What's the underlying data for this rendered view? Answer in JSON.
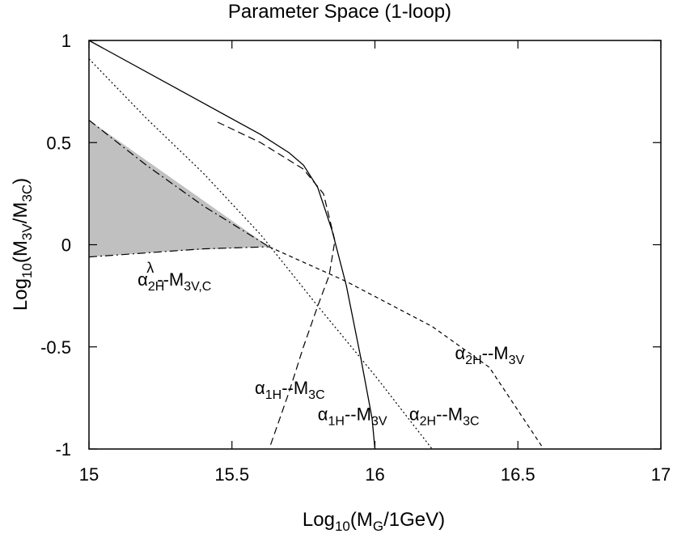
{
  "chart_data": {
    "type": "line",
    "title": "Parameter Space (1-loop)",
    "xlabel": {
      "base": "Log",
      "base_sub": "10",
      "open": "(M",
      "sub": "G",
      "close": "/1GeV)"
    },
    "ylabel": {
      "base": "Log",
      "base_sub": "10",
      "open": "(M",
      "sub1": "3V",
      "mid": "/M",
      "sub2": "3C",
      "close": ")"
    },
    "xlim": [
      15,
      17
    ],
    "ylim": [
      -1,
      1
    ],
    "xticks": [
      {
        "v": 15,
        "label": "15"
      },
      {
        "v": 15.5,
        "label": "15.5"
      },
      {
        "v": 16,
        "label": "16"
      },
      {
        "v": 16.5,
        "label": "16.5"
      },
      {
        "v": 17,
        "label": "17"
      }
    ],
    "yticks": [
      {
        "v": -1,
        "label": "-1"
      },
      {
        "v": -0.5,
        "label": "-0.5"
      },
      {
        "v": 0,
        "label": "0"
      },
      {
        "v": 0.5,
        "label": "0.5"
      },
      {
        "v": 1,
        "label": "1"
      }
    ],
    "grid": false,
    "shaded_region": {
      "color": "#c0c0c0",
      "points": [
        [
          15.0,
          0.61
        ],
        [
          15.63,
          -0.01
        ],
        [
          15.3,
          -0.03
        ],
        [
          15.0,
          -0.06
        ]
      ]
    },
    "series": [
      {
        "style": "solid",
        "points": [
          [
            15.0,
            1.0
          ],
          [
            15.3,
            0.77
          ],
          [
            15.6,
            0.54
          ],
          [
            15.7,
            0.45
          ],
          [
            15.75,
            0.39
          ],
          [
            15.8,
            0.28
          ],
          [
            15.85,
            0.07
          ],
          [
            15.9,
            -0.2
          ],
          [
            15.95,
            -0.55
          ],
          [
            15.99,
            -0.85
          ],
          [
            16.0,
            -1.0
          ]
        ]
      },
      {
        "style": "dashed",
        "points": [
          [
            15.45,
            0.6
          ],
          [
            15.6,
            0.5
          ],
          [
            15.75,
            0.37
          ],
          [
            15.82,
            0.25
          ],
          [
            15.86,
            0.02
          ],
          [
            15.84,
            -0.15
          ],
          [
            15.8,
            -0.3
          ],
          [
            15.75,
            -0.5
          ],
          [
            15.7,
            -0.72
          ],
          [
            15.63,
            -1.0
          ]
        ]
      },
      {
        "style": "dotted",
        "points": [
          [
            15.0,
            0.91
          ],
          [
            15.2,
            0.62
          ],
          [
            15.4,
            0.35
          ],
          [
            15.6,
            0.05
          ],
          [
            15.8,
            -0.3
          ],
          [
            16.0,
            -0.64
          ],
          [
            16.1,
            -0.82
          ],
          [
            16.2,
            -1.0
          ]
        ]
      },
      {
        "style": "dashdot",
        "points": [
          [
            15.0,
            0.61
          ],
          [
            15.2,
            0.39
          ],
          [
            15.4,
            0.19
          ],
          [
            15.63,
            -0.01
          ]
        ]
      },
      {
        "style": "dashdot",
        "points": [
          [
            15.0,
            -0.06
          ],
          [
            15.2,
            -0.04
          ],
          [
            15.4,
            -0.02
          ],
          [
            15.63,
            -0.01
          ]
        ]
      },
      {
        "style": "shortdash",
        "points": [
          [
            15.63,
            -0.01
          ],
          [
            15.9,
            -0.18
          ],
          [
            16.2,
            -0.4
          ],
          [
            16.4,
            -0.6
          ],
          [
            16.59,
            -1.0
          ]
        ]
      }
    ],
    "annotations": [
      {
        "x": 15.17,
        "y": -0.2,
        "main": "α",
        "sub": "2H",
        "sup": "λ",
        "rest": "--M",
        "sub2": "3V,C"
      },
      {
        "x": 16.28,
        "y": -0.56,
        "main": "α",
        "sub": "2H",
        "sup": "",
        "rest": "--M",
        "sub2": "3V"
      },
      {
        "x": 15.58,
        "y": -0.73,
        "main": "α",
        "sub": "1H",
        "sup": "",
        "rest": "--M",
        "sub2": "3C"
      },
      {
        "x": 15.8,
        "y": -0.86,
        "main": "α",
        "sub": "1H",
        "sup": "",
        "rest": "--M",
        "sub2": "3V"
      },
      {
        "x": 16.12,
        "y": -0.86,
        "main": "α",
        "sub": "2H",
        "sup": "",
        "rest": "--M",
        "sub2": "3C"
      }
    ]
  }
}
